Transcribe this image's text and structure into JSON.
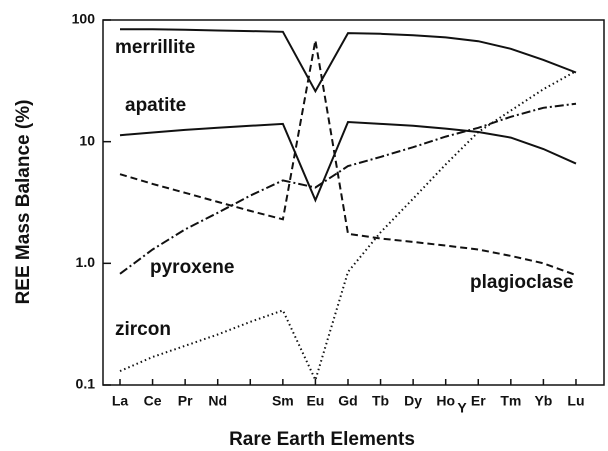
{
  "chart_data": {
    "type": "line",
    "xlabel": "Rare Earth Elements",
    "ylabel": "REE Mass Balance (%)",
    "categories": [
      "La",
      "Ce",
      "Pr",
      "Nd",
      null,
      "Sm",
      "Eu",
      "Gd",
      "Tb",
      "Dy",
      "Ho",
      "Er",
      "Tm",
      "Yb",
      "Lu"
    ],
    "annotations": [
      {
        "text": "Y"
      }
    ],
    "log_y": true,
    "ylim": [
      0.1,
      100
    ],
    "yticks": [
      0.1,
      {
        "value": 1,
        "label": "1.0"
      },
      10,
      100
    ],
    "series": [
      {
        "name": "merrillite",
        "color": "#111111",
        "style": "solid",
        "values": [
          84,
          84,
          83,
          82,
          81,
          80,
          26,
          78,
          77,
          75,
          72,
          67,
          58,
          47,
          37
        ]
      },
      {
        "name": "apatite",
        "color": "#111111",
        "style": "solid",
        "values": [
          11.3,
          11.9,
          12.5,
          13,
          13.5,
          14,
          3.3,
          14.5,
          14,
          13.5,
          12.8,
          12,
          10.8,
          8.7,
          6.6
        ]
      },
      {
        "name": "pyroxene",
        "color": "#111111",
        "style": "dashdot",
        "values": [
          0.82,
          1.3,
          1.9,
          2.6,
          3.6,
          4.8,
          4.2,
          6.3,
          7.5,
          9,
          11,
          13,
          16,
          19,
          20.5
        ]
      },
      {
        "name": "plagioclase",
        "color": "#111111",
        "style": "dashed",
        "values": [
          5.4,
          4.5,
          3.8,
          3.2,
          2.7,
          2.3,
          68,
          1.75,
          1.6,
          1.5,
          1.4,
          1.3,
          1.15,
          1.0,
          0.8
        ]
      },
      {
        "name": "zircon",
        "color": "#111111",
        "style": "dotted",
        "values": [
          0.13,
          0.17,
          0.21,
          0.26,
          0.33,
          0.41,
          0.11,
          0.85,
          1.8,
          3.4,
          6.5,
          12,
          18,
          27,
          38
        ]
      }
    ]
  }
}
